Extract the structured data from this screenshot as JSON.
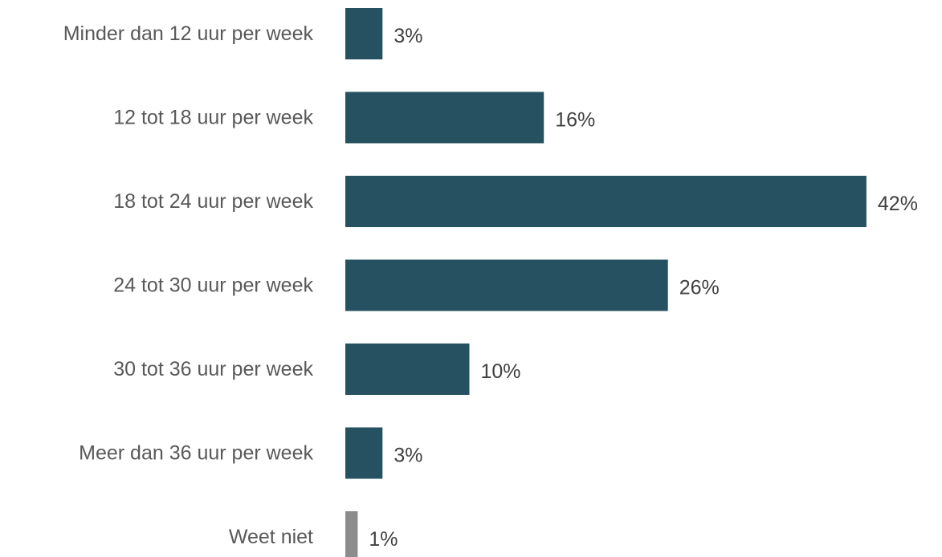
{
  "chart_data": {
    "type": "bar",
    "orientation": "horizontal",
    "categories": [
      "Minder dan 12 uur per week",
      "12 tot 18 uur per week",
      "18 tot 24 uur per week",
      "24 tot 30 uur per week",
      "30 tot 36 uur per week",
      "Meer dan 36 uur per week",
      "Weet niet"
    ],
    "values": [
      3,
      16,
      42,
      26,
      10,
      3,
      1
    ],
    "value_labels": [
      "3%",
      "16%",
      "42%",
      "26%",
      "10%",
      "3%",
      "1%"
    ],
    "unit": "%",
    "title": "",
    "xlabel": "",
    "ylabel": "",
    "grid": false,
    "legend": "none",
    "colors": {
      "primary": "#255160",
      "muted": "#8c8c8c"
    },
    "bar_colors": [
      "primary",
      "primary",
      "primary",
      "primary",
      "primary",
      "primary",
      "muted"
    ]
  }
}
